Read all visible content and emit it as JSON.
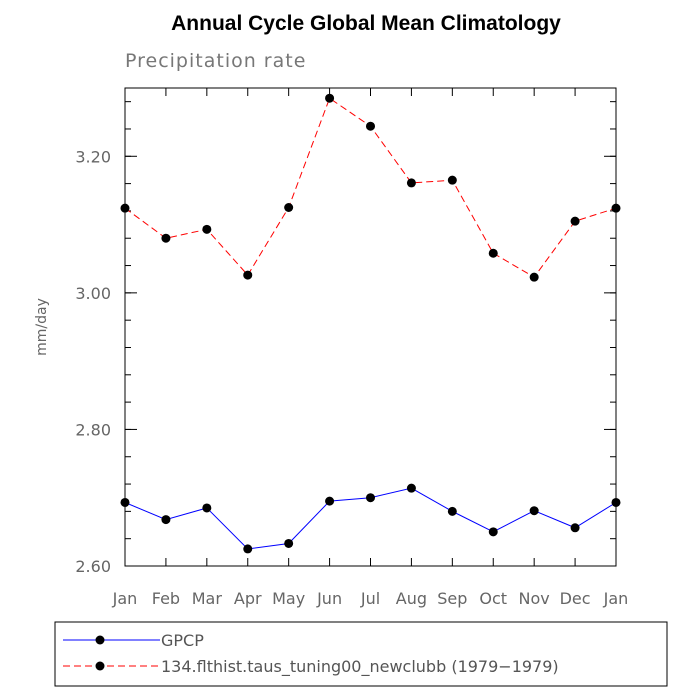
{
  "chart_data": {
    "type": "line",
    "title": "Annual Cycle Global Mean Climatology",
    "subtitle": "Precipitation rate",
    "xlabel": "",
    "ylabel": "mm/day",
    "categories": [
      "Jan",
      "Feb",
      "Mar",
      "Apr",
      "May",
      "Jun",
      "Jul",
      "Aug",
      "Sep",
      "Oct",
      "Nov",
      "Dec",
      "Jan"
    ],
    "ylim": [
      2.6,
      3.3
    ],
    "yticks": [
      "2.60",
      "2.80",
      "3.00",
      "3.20"
    ],
    "series": [
      {
        "name": "GPCP",
        "color": "#0000ff",
        "dash": "solid",
        "marker": "filled-circle",
        "values": [
          2.693,
          2.668,
          2.685,
          2.625,
          2.633,
          2.695,
          2.7,
          2.714,
          2.68,
          2.65,
          2.681,
          2.656,
          2.693
        ]
      },
      {
        "name": "134.flthist.taus_tuning00_newclubb (1979−1979)",
        "color": "#ff0000",
        "dash": "dashed",
        "marker": "filled-circle",
        "values": [
          3.124,
          3.08,
          3.093,
          3.026,
          3.125,
          3.285,
          3.244,
          3.161,
          3.165,
          3.058,
          3.023,
          3.105,
          3.124
        ]
      }
    ],
    "grid": false,
    "legend": "bottom"
  }
}
